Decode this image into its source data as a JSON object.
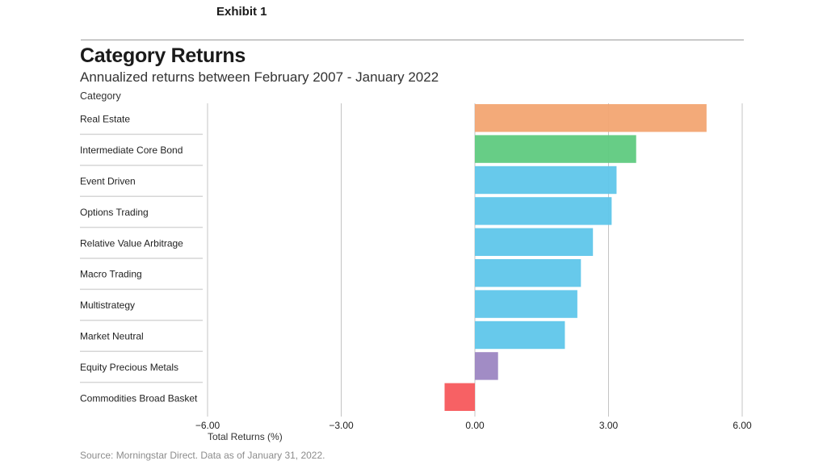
{
  "header": {
    "exhibit": "Exhibit 1",
    "title": "Category Returns",
    "subtitle": "Annualized returns between February 2007 - January 2022",
    "category_label": "Category"
  },
  "footer": {
    "source": "Source: Morningstar Direct. Data as of January 31, 2022."
  },
  "chart_data": {
    "type": "bar",
    "orientation": "horizontal",
    "title": "Category Returns",
    "subtitle": "Annualized returns between February 2007 - January 2022",
    "xlabel": "Total Returns (%)",
    "ylabel": "Category",
    "xlim": [
      -6,
      6
    ],
    "xticks": [
      -6,
      -3,
      0,
      3,
      6
    ],
    "xtick_labels": [
      "−6.00",
      "−3.00",
      "0.00",
      "3.00",
      "6.00"
    ],
    "grid": true,
    "categories": [
      "Real Estate",
      "Intermediate Core Bond",
      "Event Driven",
      "Options Trading",
      "Relative Value Arbitrage",
      "Macro Trading",
      "Multistrategy",
      "Market Neutral",
      "Equity Precious Metals",
      "Commodities Broad Basket"
    ],
    "values": [
      5.2,
      3.62,
      3.18,
      3.07,
      2.65,
      2.38,
      2.3,
      2.02,
      0.52,
      -0.68
    ],
    "colors": [
      "#f2a572",
      "#5fca80",
      "#5fc6ea",
      "#5fc6ea",
      "#5fc6ea",
      "#5fc6ea",
      "#5fc6ea",
      "#5fc6ea",
      "#9c86c2",
      "#f7595c"
    ]
  }
}
